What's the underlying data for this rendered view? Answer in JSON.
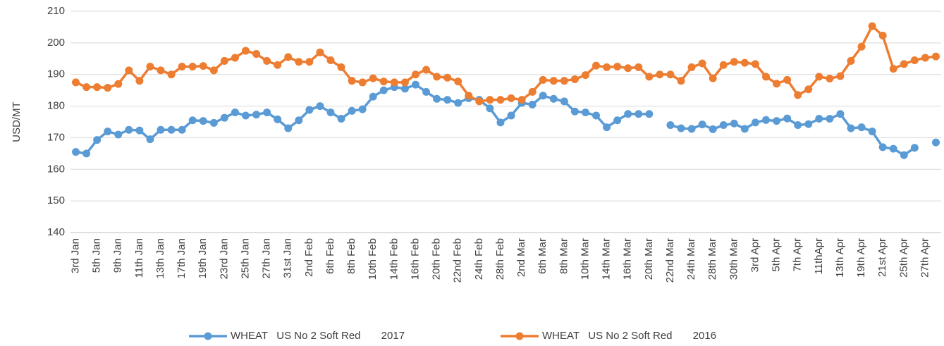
{
  "chart_data": {
    "type": "line",
    "ylabel": "USD/MT",
    "categories": [
      "3rd Jan",
      null,
      "5th Jan",
      null,
      "9th Jan",
      null,
      "11th Jan",
      null,
      "13th Jan",
      null,
      "17th Jan",
      null,
      "19th Jan",
      null,
      "23rd Jan",
      null,
      "25th Jan",
      null,
      "27th Jan",
      null,
      "31st Jan",
      null,
      "2nd Feb",
      null,
      "6th Feb",
      null,
      "8th Feb",
      null,
      "10th Feb",
      null,
      "14th Feb",
      null,
      "16th Feb",
      null,
      "20th Feb",
      null,
      "22nd Feb",
      null,
      "24th Feb",
      null,
      "28th Feb",
      null,
      "2nd Mar",
      null,
      "6th Mar",
      null,
      "8th Mar",
      null,
      "10th Mar",
      null,
      "14th Mar",
      null,
      "16th Mar",
      null,
      "20th Mar",
      null,
      "22nd Mar",
      null,
      "24th Mar",
      null,
      "28th Mar",
      null,
      "30th Mar",
      null,
      "3rd Apr",
      null,
      "5th Apr",
      null,
      "7th Apr",
      null,
      "11thApr",
      null,
      "13th Apr",
      null,
      "19th Apr",
      null,
      "21st Apr",
      null,
      "25th Apr",
      null,
      "27th Apr",
      null
    ],
    "series": [
      {
        "name": "WHEAT   US No 2 Soft Red       2017",
        "color": "#5b9bd5",
        "values": [
          165.5,
          165,
          169.3,
          172,
          171,
          172.5,
          172.3,
          169.5,
          172.5,
          172.5,
          172.5,
          175.5,
          175.3,
          174.7,
          176.3,
          178,
          177,
          177.3,
          178,
          175.8,
          173,
          175.5,
          178.8,
          180,
          178,
          176,
          178.5,
          179,
          183,
          185,
          186,
          185.5,
          186.8,
          184.5,
          182.3,
          182,
          181,
          182.5,
          182,
          179.3,
          174.8,
          177,
          181,
          180.5,
          183.3,
          182.3,
          181.5,
          178.3,
          178,
          177,
          173.3,
          175.5,
          177.5,
          177.5,
          177.5,
          null,
          174,
          173,
          172.8,
          174.2,
          172.7,
          174,
          174.5,
          172.8,
          174.8,
          175.6,
          175.3,
          176.1,
          174,
          174.3,
          176,
          176,
          177.5,
          173,
          173.3,
          172,
          167,
          166.5,
          164.5,
          166.8,
          null,
          168.5
        ]
      },
      {
        "name": "WHEAT   US No 2 Soft Red       2016",
        "color": "#ed7d31",
        "values": [
          187.5,
          186,
          186,
          185.8,
          187,
          191.3,
          188,
          192.5,
          191.3,
          190,
          192.5,
          192.5,
          192.7,
          191.3,
          194.3,
          195.3,
          197.5,
          196.5,
          194.3,
          193,
          195.5,
          194,
          194,
          197,
          194.5,
          192.3,
          188,
          187.5,
          188.8,
          187.8,
          187.5,
          187.5,
          190,
          191.5,
          189.3,
          189,
          187.8,
          183.3,
          181.5,
          182,
          182,
          182.5,
          182,
          184.5,
          188.3,
          188,
          188,
          188.5,
          189.8,
          192.8,
          192.3,
          192.5,
          192,
          192.3,
          189.3,
          190,
          190,
          188,
          192.3,
          193.5,
          188.8,
          193,
          194,
          193.7,
          193.3,
          189.3,
          187.1,
          188.3,
          183.5,
          185.3,
          189.3,
          188.7,
          189.5,
          194.3,
          198.8,
          205.3,
          202.3,
          191.8,
          193.3,
          194.5,
          195.3,
          195.7
        ]
      }
    ],
    "ylim": [
      140,
      210
    ],
    "yticks": [
      140,
      150,
      160,
      170,
      180,
      190,
      200,
      210
    ],
    "grid": true,
    "legend": "bottom"
  }
}
